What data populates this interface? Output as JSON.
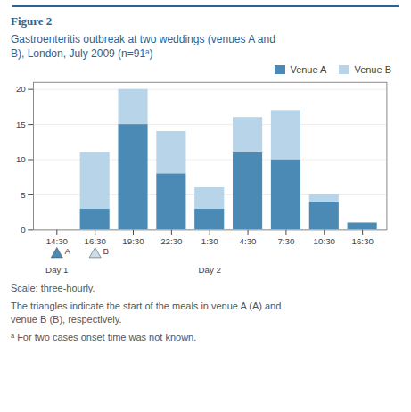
{
  "chart_data": {
    "type": "bar",
    "title": "Figure 2",
    "subtitle": "Gastroenteritis outbreak at two weddings (venues A and\nB), London, July 2009 (n=91ᵃ)",
    "categories": [
      "14:30",
      "16:30",
      "19:30",
      "22:30",
      "1:30",
      "4:30",
      "7:30",
      "10:30",
      "16:30"
    ],
    "series": [
      {
        "name": "Venue A",
        "color": "#4a8ab5",
        "values": [
          0,
          3,
          15,
          8,
          3,
          11,
          10,
          4,
          1
        ]
      },
      {
        "name": "Venue B",
        "color": "#b8d4e8",
        "values": [
          0,
          8,
          5,
          6,
          3,
          5,
          7,
          1,
          0
        ]
      }
    ],
    "stacked": true,
    "ylim": [
      0,
      21
    ],
    "yticks": [
      0,
      5,
      10,
      15,
      20
    ],
    "grid": true,
    "legend": "upper right",
    "annotations": [
      {
        "text": "A",
        "x": "14:30",
        "marker": "triangle",
        "color": "#4a8ab5"
      },
      {
        "text": "B",
        "x": "16:30",
        "marker": "triangle",
        "color": "#ccddea"
      },
      {
        "text": "Day 1",
        "x": "14:30"
      },
      {
        "text": "Day 2",
        "x": "1:30"
      }
    ],
    "notes": [
      "Scale: three-hourly.",
      "The triangles indicate the start of the meals in venue A (A) and\nvenue B (B), respectively.",
      "ᵃ For two cases onset time was not known."
    ]
  }
}
